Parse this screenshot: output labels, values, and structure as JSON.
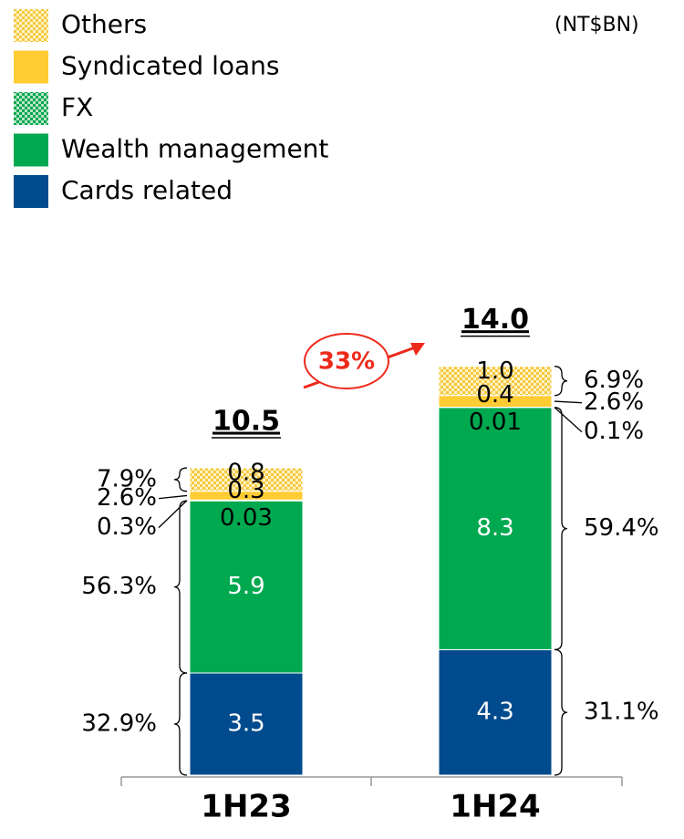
{
  "chart_data": {
    "type": "stacked_bar",
    "unit": "(NT$BN)",
    "categories": [
      "1H23",
      "1H24"
    ],
    "series": [
      {
        "name": "Cards related",
        "color": "#004b8d",
        "values": [
          3.5,
          4.3
        ],
        "shares": [
          {
            "value": 32.9,
            "label": "32.9%"
          },
          {
            "value": 31.1,
            "label": "31.1%"
          }
        ]
      },
      {
        "name": "Wealth management",
        "color": "#00a84f",
        "values": [
          5.9,
          8.3
        ],
        "shares": [
          {
            "value": 56.3,
            "label": "56.3%"
          },
          {
            "value": 59.4,
            "label": "59.4%"
          }
        ]
      },
      {
        "name": "FX",
        "color": "#00a84f",
        "hatch": true,
        "values": [
          0.03,
          0.01
        ],
        "shares": [
          {
            "value": 0.3,
            "label": "0.3%"
          },
          {
            "value": 0.1,
            "label": "0.1%"
          }
        ]
      },
      {
        "name": "Syndicated loans",
        "color": "#ffcc33",
        "values": [
          0.3,
          0.4
        ],
        "shares": [
          {
            "value": 2.6,
            "label": "2.6%"
          },
          {
            "value": 2.6,
            "label": "2.6%"
          }
        ]
      },
      {
        "name": "Others",
        "color": "#ffcc33",
        "hatch": true,
        "values": [
          0.8,
          1.0
        ],
        "value_labels": [
          "0.8",
          "1.0"
        ],
        "shares": [
          {
            "value": 7.9,
            "label": "7.9%"
          },
          {
            "value": 6.9,
            "label": "6.9%"
          }
        ]
      }
    ],
    "totals": [
      10.5,
      {
        "value": 14.0,
        "label": "14.0"
      }
    ],
    "growth": {
      "value": 33,
      "label": "33%"
    }
  }
}
